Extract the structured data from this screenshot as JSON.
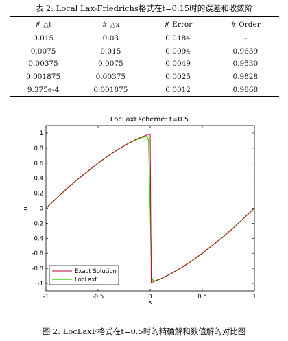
{
  "table": {
    "caption": "表 2: Local Lax-Friedrichs格式在t=0.15时的误差和收敛阶",
    "headers": [
      "# △t",
      "# △x",
      "# Error",
      "# Order"
    ],
    "rows": [
      [
        "0.015",
        "0.03",
        "0.0184",
        "-"
      ],
      [
        "0.0075",
        "0.015",
        "0.0094",
        "0.9639"
      ],
      [
        "0.00375",
        "0.0075",
        "0.0049",
        "0.9530"
      ],
      [
        "0.001875",
        "0.00375",
        "0.0025",
        "0.9828"
      ],
      [
        "9.375e-4",
        "0.001875",
        "0.0012",
        "0.9868"
      ]
    ]
  },
  "figure": {
    "caption": "图 2: LocLaxF格式在t=0.5时的精确解和数值解的对比图"
  },
  "chart_data": {
    "type": "line",
    "title": "LocLaxFscheme: t=0.5",
    "xlabel": "x",
    "ylabel": "u",
    "xlim": [
      -1,
      1
    ],
    "ylim": [
      -1.1,
      1.1
    ],
    "xticks": [
      "-1",
      "-0.5",
      "0",
      "0.5",
      "1"
    ],
    "yticks": [
      "1",
      "0.8",
      "0.6",
      "0.4",
      "0.2",
      "0",
      "-0.2",
      "-0.4",
      "-0.6",
      "-0.8",
      "-1"
    ],
    "ytick_values": [
      1,
      0.8,
      0.6,
      0.4,
      0.2,
      0,
      -0.2,
      -0.4,
      -0.6,
      -0.8,
      -1
    ],
    "xtick_values": [
      -1,
      -0.5,
      0,
      0.5,
      1
    ],
    "grid": false,
    "legend_position": "bottom-left",
    "series": [
      {
        "name": "Exact Solution",
        "color": "#c0002a",
        "x": [
          -1,
          -0.9,
          -0.8,
          -0.7,
          -0.6,
          -0.5,
          -0.4,
          -0.3,
          -0.2,
          -0.1,
          0,
          0.005,
          0.01,
          0.1,
          0.2,
          0.3,
          0.4,
          0.5,
          0.6,
          0.7,
          0.8,
          0.9,
          1
        ],
        "y": [
          0,
          0.13,
          0.26,
          0.38,
          0.49,
          0.6,
          0.7,
          0.79,
          0.87,
          0.94,
          0.99,
          0,
          -0.99,
          -0.94,
          -0.87,
          -0.79,
          -0.7,
          -0.6,
          -0.49,
          -0.38,
          -0.26,
          -0.13,
          0
        ]
      },
      {
        "name": "LocLaxF",
        "color": "#33dd00",
        "x": [
          -1,
          -0.9,
          -0.8,
          -0.7,
          -0.6,
          -0.5,
          -0.4,
          -0.3,
          -0.2,
          -0.1,
          -0.03,
          -0.015,
          0,
          0.015,
          0.03,
          0.1,
          0.2,
          0.3,
          0.4,
          0.5,
          0.6,
          0.7,
          0.8,
          0.9,
          1
        ],
        "y": [
          0,
          0.13,
          0.26,
          0.38,
          0.49,
          0.6,
          0.7,
          0.79,
          0.87,
          0.93,
          0.96,
          0.9,
          0,
          -0.92,
          -0.97,
          -0.94,
          -0.87,
          -0.79,
          -0.7,
          -0.6,
          -0.49,
          -0.38,
          -0.26,
          -0.13,
          0
        ]
      }
    ]
  }
}
